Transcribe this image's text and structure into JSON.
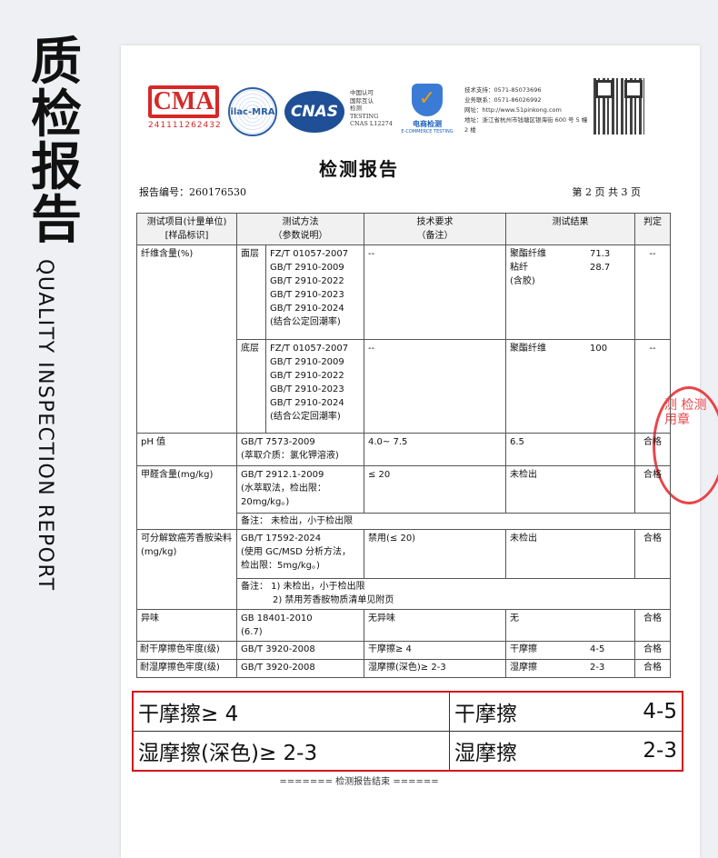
{
  "side": {
    "title": "质检报告",
    "subtitle": "QUALITY INSPECTION REPORT"
  },
  "logos": {
    "cma_text": "CMA",
    "cma_number": "241111262432",
    "ilac_text": "ilac-MRA",
    "cnas_text": "CNAS",
    "cnas_lines": [
      "中国认可",
      "国际互认",
      "检测",
      "TESTING",
      "CNAS L12274"
    ],
    "ecommerce_cn": "电商检测",
    "ecommerce_en": "E-COMMERCE TESTING",
    "contact": [
      "技术支持：0571-85073696",
      "业务联系：0571-86026992",
      "网址：http://www.51pinkong.com",
      "地址：浙江省杭州市钱塘区银海街 600 号 5 幢 2 楼"
    ]
  },
  "report": {
    "title": "检测报告",
    "number": "报告编号：260176530",
    "page": "第 2 页 共 3 页",
    "end": "======= 检测报告结束 ======"
  },
  "table": {
    "headers": [
      "测试项目(计量单位)\n[样品标识]",
      "测试方法\n（参数说明）",
      "技术要求\n（备注）",
      "测试结果",
      "判定"
    ],
    "fiber": {
      "item": "纤维含量(%)",
      "face": {
        "layer": "面层",
        "method": "FZ/T 01057-2007\nGB/T 2910-2009\nGB/T 2910-2022\nGB/T 2910-2023\nGB/T 2910-2024\n(结合公定回潮率)",
        "req": "--",
        "results": [
          [
            "聚酯纤维",
            "71.3"
          ],
          [
            "粘纤",
            "28.7"
          ],
          [
            "(含胶)",
            ""
          ]
        ],
        "judge": "--"
      },
      "bottom": {
        "layer": "底层",
        "method": "FZ/T 01057-2007\nGB/T 2910-2009\nGB/T 2910-2022\nGB/T 2910-2023\nGB/T 2910-2024\n(结合公定回潮率)",
        "req": "--",
        "results": [
          [
            "聚酯纤维",
            "100"
          ]
        ],
        "judge": "--"
      }
    },
    "ph": {
      "item": "pH 值",
      "method": "GB/T 7573-2009\n(萃取介质：氯化钾溶液)",
      "req": "4.0~ 7.5",
      "result": "6.5",
      "judge": "合格"
    },
    "formaldehyde": {
      "item": "甲醛含量(mg/kg)",
      "method": "GB/T 2912.1-2009\n(水萃取法，检出限：20mg/kg。)",
      "req": "≤ 20",
      "result": "未检出",
      "judge": "合格",
      "note": "备注： 未检出，小于检出限"
    },
    "amine": {
      "item": "可分解致癌芳香胺染料(mg/kg)",
      "method": "GB/T 17592-2024\n(使用 GC/MSD 分析方法，检出限：5mg/kg。)",
      "req": "禁用(≤ 20)",
      "result": "未检出",
      "judge": "合格",
      "note": "备注： 1) 未检出，小于检出限\n           2) 禁用芳香胺物质清单见附页"
    },
    "odor": {
      "item": "异味",
      "method": "GB 18401-2010\n(6.7)",
      "req": "无异味",
      "result": "无",
      "judge": "合格"
    },
    "dry": {
      "item": "耐干摩擦色牢度(级)",
      "method": "GB/T 3920-2008",
      "req": "干摩擦≥ 4",
      "result_name": "干摩擦",
      "result_value": "4-5",
      "judge": "合格"
    },
    "wet": {
      "item": "耐湿摩擦色牢度(级)",
      "method": "GB/T 3920-2008",
      "req": "湿摩擦(深色)≥ 2-3",
      "result_name": "湿摩擦",
      "result_value": "2-3",
      "judge": "合格"
    }
  },
  "highlight": {
    "dry_req": "干摩擦≥ 4",
    "dry_name": "干摩擦",
    "dry_value": "4-5",
    "wet_req": "湿摩擦(深色)≥ 2-3",
    "wet_name": "湿摩擦",
    "wet_value": "2-3"
  },
  "stamp": {
    "text": "测 检测 用章"
  },
  "colors": {
    "highlight_border": "#d8141b",
    "stamp": "#e8252b"
  }
}
